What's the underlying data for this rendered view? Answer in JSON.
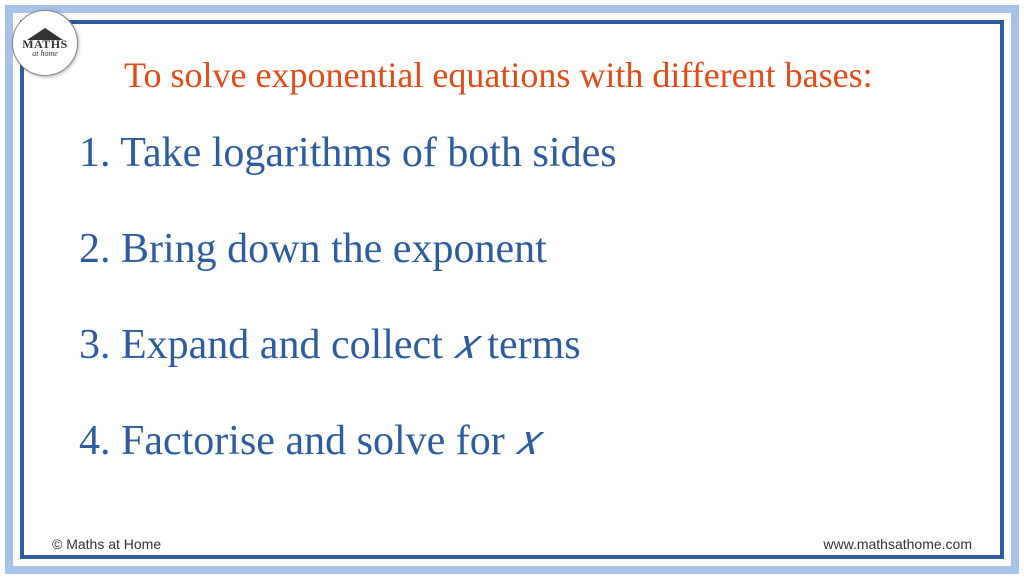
{
  "colors": {
    "outer_border": "#a8c3e8",
    "inner_border": "#2e5c9e",
    "title_color": "#e04b18",
    "step_color": "#2e5c9e",
    "footer_color": "#333333",
    "background": "#ffffff"
  },
  "typography": {
    "title_fontsize": 36,
    "step_fontsize": 42,
    "footer_fontsize": 14,
    "font_family": "Georgia, serif"
  },
  "logo": {
    "main_text": "MATHS",
    "sub_text": "at home"
  },
  "title": "To solve exponential equations with different bases:",
  "steps": [
    {
      "num": "1.",
      "text_before": "Take logarithms of both sides",
      "var": "",
      "text_after": ""
    },
    {
      "num": "2.",
      "text_before": "Bring down the exponent",
      "var": "",
      "text_after": ""
    },
    {
      "num": "3.",
      "text_before": "Expand and collect ",
      "var": "𝑥",
      "text_after": " terms"
    },
    {
      "num": "4.",
      "text_before": "Factorise and solve for ",
      "var": "𝑥",
      "text_after": ""
    }
  ],
  "footer": {
    "left": "© Maths at Home",
    "right": "www.mathsathome.com"
  }
}
